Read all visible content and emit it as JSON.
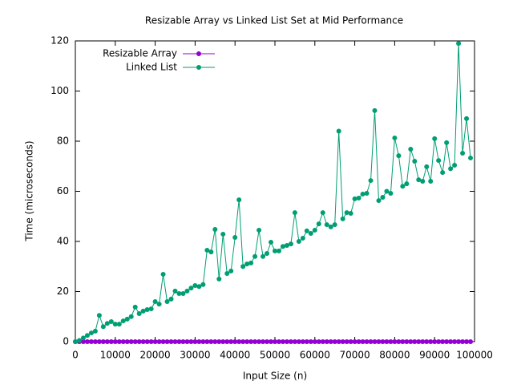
{
  "chart_data": {
    "type": "line",
    "title": "Resizable Array vs Linked List Set at Mid Performance",
    "xlabel": "Input Size (n)",
    "ylabel": "Time (microseconds)",
    "x": [
      0,
      1000,
      2000,
      3000,
      4000,
      5000,
      6000,
      7000,
      8000,
      9000,
      10000,
      11000,
      12000,
      13000,
      14000,
      15000,
      16000,
      17000,
      18000,
      19000,
      20000,
      21000,
      22000,
      23000,
      24000,
      25000,
      26000,
      27000,
      28000,
      29000,
      30000,
      31000,
      32000,
      33000,
      34000,
      35000,
      36000,
      37000,
      38000,
      39000,
      40000,
      41000,
      42000,
      43000,
      44000,
      45000,
      46000,
      47000,
      48000,
      49000,
      50000,
      51000,
      52000,
      53000,
      54000,
      55000,
      56000,
      57000,
      58000,
      59000,
      60000,
      61000,
      62000,
      63000,
      64000,
      65000,
      66000,
      67000,
      68000,
      69000,
      70000,
      71000,
      72000,
      73000,
      74000,
      75000,
      76000,
      77000,
      78000,
      79000,
      80000,
      81000,
      82000,
      83000,
      84000,
      85000,
      86000,
      87000,
      88000,
      89000,
      90000,
      91000,
      92000,
      93000,
      94000,
      95000,
      96000,
      97000,
      98000,
      99000
    ],
    "series": [
      {
        "name": "Resizable Array",
        "color": "#9400d3",
        "values": [
          0,
          0,
          0,
          0,
          0,
          0,
          0,
          0,
          0,
          0,
          0,
          0,
          0,
          0,
          0,
          0,
          0,
          0,
          0,
          0,
          0,
          0,
          0,
          0,
          0,
          0,
          0,
          0,
          0,
          0,
          0,
          0,
          0,
          0,
          0,
          0,
          0,
          0,
          0,
          0,
          0,
          0,
          0,
          0,
          0,
          0,
          0,
          0,
          0,
          0,
          0,
          0,
          0,
          0,
          0,
          0,
          0,
          0,
          0,
          0,
          0,
          0,
          0,
          0,
          0,
          0,
          0,
          0,
          0,
          0,
          0,
          0,
          0,
          0,
          0,
          0,
          0,
          0,
          0,
          0,
          0,
          0,
          0,
          0,
          0,
          0,
          0,
          0,
          0,
          0,
          0,
          0,
          0,
          0,
          0,
          0,
          0,
          0,
          0,
          0
        ]
      },
      {
        "name": "Linked List",
        "color": "#009e73",
        "values": [
          0,
          0.5,
          1.5,
          2.5,
          3.5,
          4.2,
          10.5,
          6,
          7.3,
          8,
          7,
          7,
          8.3,
          9,
          10,
          13.8,
          11.2,
          12.2,
          12.8,
          13.1,
          16,
          15,
          26.9,
          16,
          17,
          20.2,
          19.2,
          19.2,
          20.2,
          21.4,
          22.4,
          22,
          22.8,
          36.5,
          35.8,
          44.8,
          25,
          42.9,
          27.2,
          28.2,
          41.6,
          56.6,
          30,
          31,
          31.4,
          34,
          44.5,
          34,
          35.2,
          39.7,
          36.2,
          36.2,
          38,
          38.4,
          39,
          51.5,
          40,
          41.3,
          44.2,
          43.2,
          44.5,
          47,
          51.5,
          46.7,
          45.8,
          46.7,
          84,
          49,
          51.5,
          51.2,
          57,
          57.3,
          58.9,
          59.2,
          64.3,
          92.2,
          56.3,
          57.6,
          60,
          59.2,
          81.3,
          74.2,
          62,
          63,
          76.8,
          72,
          64.6,
          64,
          69.8,
          64,
          81,
          72.3,
          67.5,
          79.4,
          69,
          70.4,
          119,
          75.2,
          89,
          73.3
        ]
      }
    ],
    "xlim": [
      0,
      100000
    ],
    "xticks": [
      0,
      10000,
      20000,
      30000,
      40000,
      50000,
      60000,
      70000,
      80000,
      90000,
      100000
    ],
    "ylim": [
      0,
      120
    ],
    "yticks": [
      0,
      20,
      40,
      60,
      80,
      100,
      120
    ],
    "legend": "upper left"
  }
}
